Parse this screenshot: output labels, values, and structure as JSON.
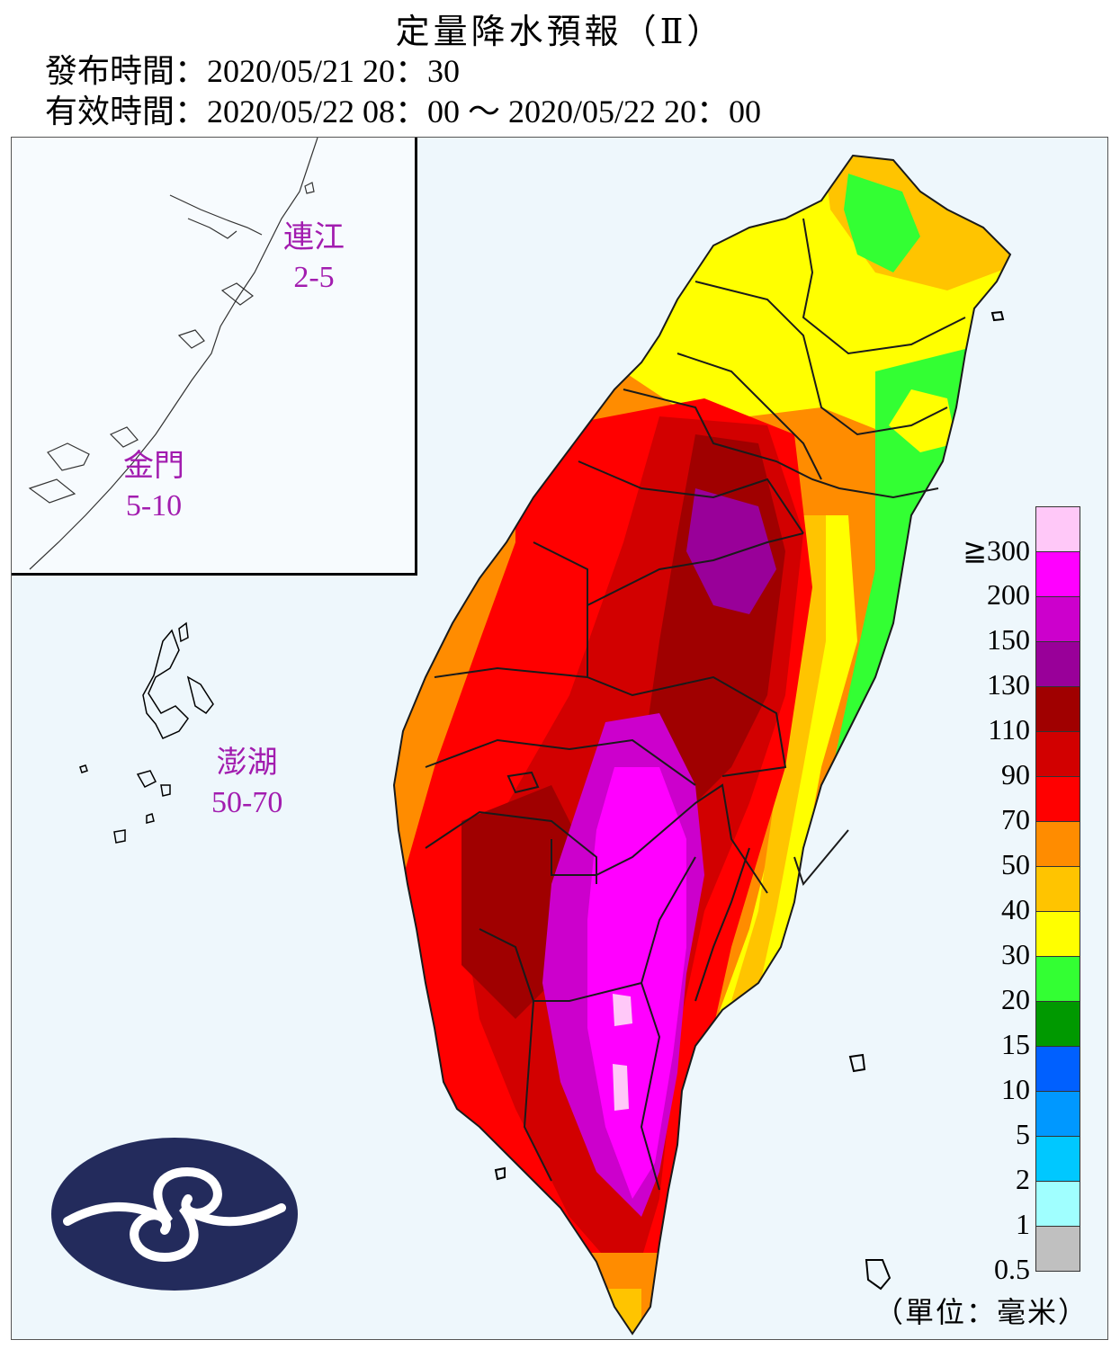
{
  "title": "定量降水預報（Ⅱ）",
  "issue_line": "發布時間：2020/05/21 20：30",
  "valid_line": "有效時間：2020/05/22 08：00 ～ 2020/05/22 20：00",
  "islands": [
    {
      "name": "連江",
      "range": "2-5"
    },
    {
      "name": "金門",
      "range": "5-10"
    },
    {
      "name": "澎湖",
      "range": "50-70"
    }
  ],
  "legend": {
    "unit": "（單位：毫米）",
    "colors": [
      "#ffc8f8",
      "#ff00ff",
      "#cc00cc",
      "#990099",
      "#a00000",
      "#d20000",
      "#ff0000",
      "#ff8c00",
      "#ffc400",
      "#ffff00",
      "#33ff33",
      "#009900",
      "#0060ff",
      "#0098ff",
      "#00c8ff",
      "#a0ffff",
      "#c0c0c0"
    ],
    "labels": [
      "≧300",
      "200",
      "150",
      "130",
      "110",
      "90",
      "70",
      "50",
      "40",
      "30",
      "20",
      "15",
      "10",
      "5",
      "2",
      "1",
      "0.5"
    ]
  },
  "colors": {
    "sea": "#eef7fc",
    "label_purple": "#a21caf",
    "logo_navy": "#232b5c"
  }
}
